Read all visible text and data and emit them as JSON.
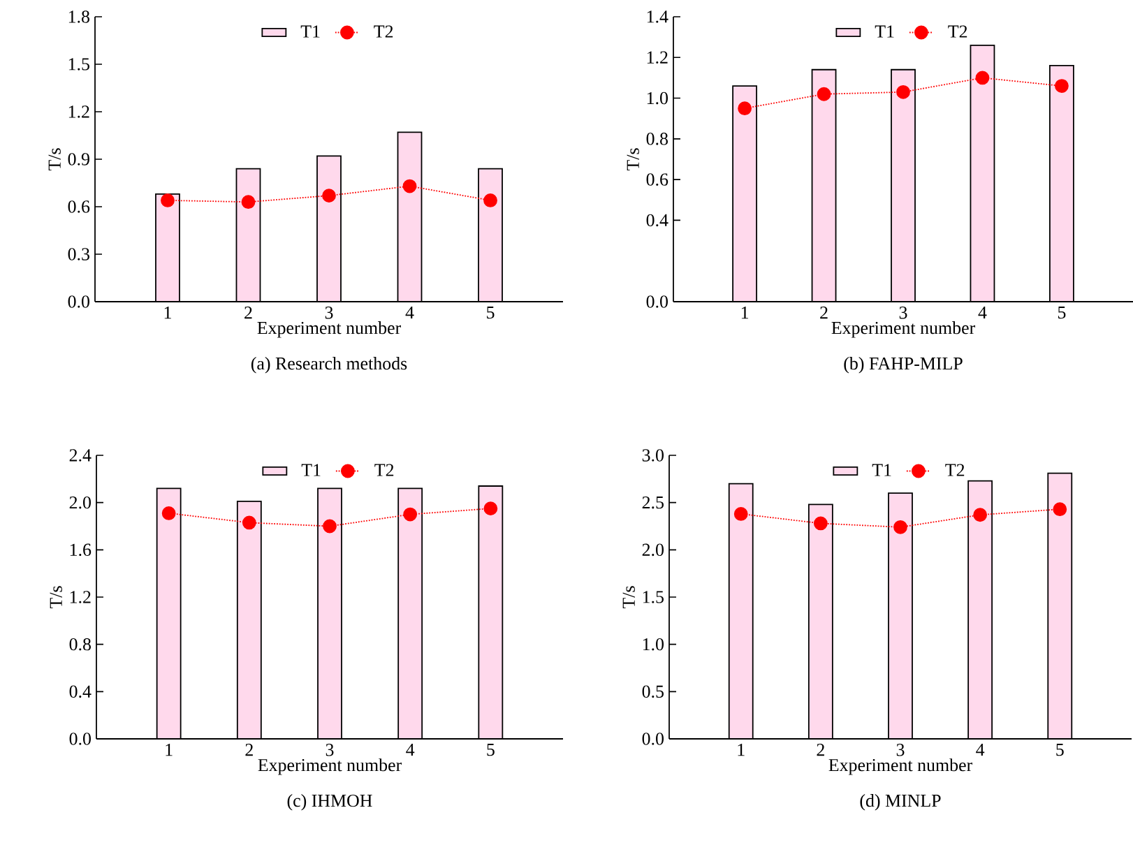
{
  "chart_data": [
    {
      "type": "bar",
      "title": "(a) Research methods",
      "xlabel": "Experiment number",
      "ylabel": "T/s",
      "categories": [
        "1",
        "2",
        "3",
        "4",
        "5"
      ],
      "legend": "top",
      "ylim": [
        0,
        1.8
      ],
      "yticks": [
        {
          "value": 0,
          "label": "0.0"
        },
        0.3,
        0.6,
        0.9,
        1.2,
        1.5,
        1.8
      ],
      "series": [
        {
          "name": "T1",
          "color": "#ffd9ec",
          "values": [
            0.68,
            0.84,
            0.92,
            1.07,
            0.84
          ]
        },
        {
          "name": "T2",
          "type": "line",
          "color": "#ff0000",
          "marker": "circle",
          "line_style": "dotted",
          "values": [
            0.64,
            0.63,
            0.67,
            0.73,
            0.64
          ]
        }
      ]
    },
    {
      "type": "bar",
      "title": "(b) FAHP-MILP",
      "xlabel": "Experiment number",
      "ylabel": "T/s",
      "categories": [
        "1",
        "2",
        "3",
        "4",
        "5"
      ],
      "legend": "top",
      "ylim": [
        0,
        1.4
      ],
      "yticks": [
        {
          "value": 0,
          "label": "0.0"
        },
        0.4,
        0.6,
        0.8,
        {
          "value": 1,
          "label": "1.0"
        },
        1.2,
        1.4
      ],
      "series": [
        {
          "name": "T1",
          "color": "#ffd9ec",
          "values": [
            1.06,
            1.14,
            1.14,
            1.26,
            1.16
          ]
        },
        {
          "name": "T2",
          "type": "line",
          "color": "#ff0000",
          "marker": "circle",
          "line_style": "dotted",
          "values": [
            0.95,
            1.02,
            1.03,
            1.1,
            1.06
          ]
        }
      ]
    },
    {
      "type": "bar",
      "title": "(c) IHMOH",
      "xlabel": "Experiment number",
      "ylabel": "T/s",
      "categories": [
        "1",
        "2",
        "3",
        "4",
        "5"
      ],
      "legend": "top",
      "ylim": [
        0,
        2.4
      ],
      "yticks": [
        {
          "value": 0,
          "label": "0.0"
        },
        0.4,
        0.8,
        1.2,
        1.6,
        {
          "value": 2,
          "label": "2.0"
        },
        2.4
      ],
      "series": [
        {
          "name": "T1",
          "color": "#ffd9ec",
          "values": [
            2.12,
            2.01,
            2.12,
            2.12,
            2.14
          ]
        },
        {
          "name": "T2",
          "type": "line",
          "color": "#ff0000",
          "marker": "circle",
          "line_style": "dotted",
          "values": [
            1.91,
            1.83,
            1.8,
            1.9,
            1.95
          ]
        }
      ]
    },
    {
      "type": "bar",
      "title": "(d) MINLP",
      "xlabel": "Experiment number",
      "ylabel": "T/s",
      "categories": [
        "1",
        "2",
        "3",
        "4",
        "5"
      ],
      "legend": "top",
      "ylim": [
        0,
        3
      ],
      "yticks": [
        {
          "value": 0,
          "label": "0.0"
        },
        0.5,
        {
          "value": 1,
          "label": "1.0"
        },
        1.5,
        {
          "value": 2,
          "label": "2.0"
        },
        2.5,
        {
          "value": 3,
          "label": "3.0"
        }
      ],
      "series": [
        {
          "name": "T1",
          "color": "#ffd9ec",
          "values": [
            2.7,
            2.48,
            2.6,
            2.73,
            2.81
          ]
        },
        {
          "name": "T2",
          "type": "line",
          "color": "#ff0000",
          "marker": "circle",
          "line_style": "dotted",
          "values": [
            2.38,
            2.28,
            2.24,
            2.37,
            2.43
          ]
        }
      ]
    }
  ]
}
